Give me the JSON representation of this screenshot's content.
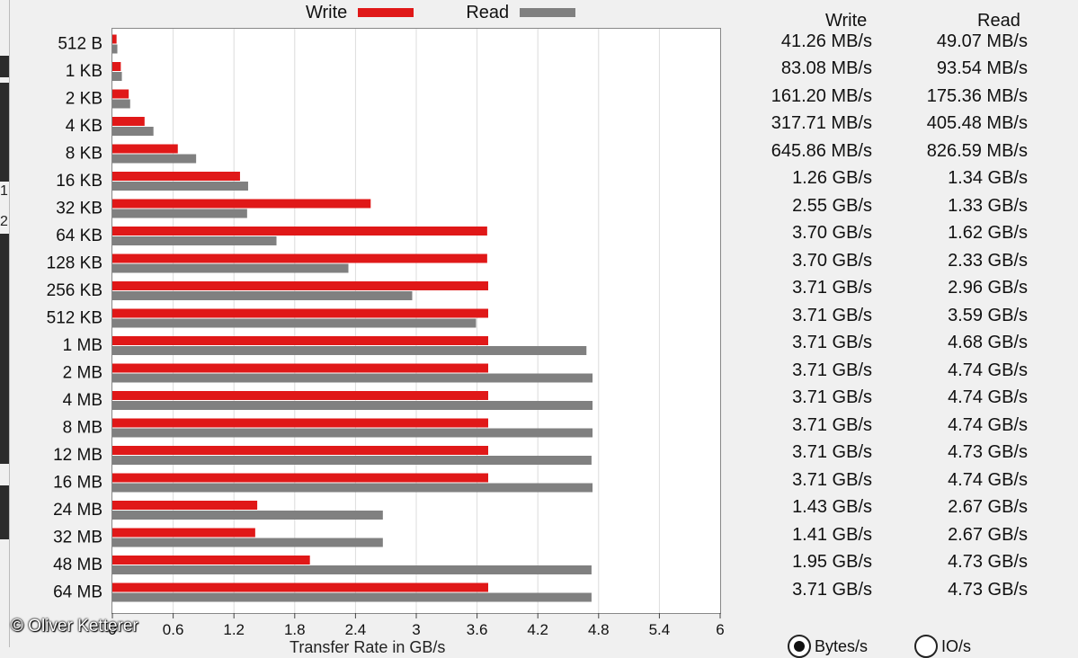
{
  "chart_data": {
    "type": "bar",
    "orientation": "horizontal",
    "categories": [
      "512 B",
      "1 KB",
      "2 KB",
      "4 KB",
      "8 KB",
      "16 KB",
      "32 KB",
      "64 KB",
      "128 KB",
      "256 KB",
      "512 KB",
      "1 MB",
      "2 MB",
      "4 MB",
      "8 MB",
      "12 MB",
      "16 MB",
      "24 MB",
      "32 MB",
      "48 MB",
      "64 MB"
    ],
    "series": [
      {
        "name": "Write",
        "color": "#e01818",
        "values": [
          0.04126,
          0.08308,
          0.1612,
          0.31771,
          0.64586,
          1.26,
          2.55,
          3.7,
          3.7,
          3.71,
          3.71,
          3.71,
          3.71,
          3.71,
          3.71,
          3.71,
          3.71,
          1.43,
          1.41,
          1.95,
          3.71
        ]
      },
      {
        "name": "Read",
        "color": "#808080",
        "values": [
          0.04907,
          0.09354,
          0.17536,
          0.40548,
          0.82659,
          1.34,
          1.33,
          1.62,
          2.33,
          2.96,
          3.59,
          4.68,
          4.74,
          4.74,
          4.74,
          4.73,
          4.74,
          2.67,
          2.67,
          4.73,
          4.73
        ]
      }
    ],
    "xlim": [
      0,
      6
    ],
    "xticks": [
      "0",
      "0.6",
      "1.2",
      "1.8",
      "2.4",
      "3",
      "3.6",
      "4.2",
      "4.8",
      "5.4",
      "6"
    ],
    "xlabel": "Transfer Rate in GB/s",
    "grid": "vertical",
    "legend_position": "top"
  },
  "legend": {
    "write": "Write",
    "read": "Read"
  },
  "table": {
    "header_write": "Write",
    "header_read": "Read",
    "write": [
      "41.26 MB/s",
      "83.08 MB/s",
      "161.20 MB/s",
      "317.71 MB/s",
      "645.86 MB/s",
      "1.26 GB/s",
      "2.55 GB/s",
      "3.70 GB/s",
      "3.70 GB/s",
      "3.71 GB/s",
      "3.71 GB/s",
      "3.71 GB/s",
      "3.71 GB/s",
      "3.71 GB/s",
      "3.71 GB/s",
      "3.71 GB/s",
      "3.71 GB/s",
      "1.43 GB/s",
      "1.41 GB/s",
      "1.95 GB/s",
      "3.71 GB/s"
    ],
    "read": [
      "49.07 MB/s",
      "93.54 MB/s",
      "175.36 MB/s",
      "405.48 MB/s",
      "826.59 MB/s",
      "1.34 GB/s",
      "1.33 GB/s",
      "1.62 GB/s",
      "2.33 GB/s",
      "2.96 GB/s",
      "3.59 GB/s",
      "4.68 GB/s",
      "4.74 GB/s",
      "4.74 GB/s",
      "4.74 GB/s",
      "4.73 GB/s",
      "4.74 GB/s",
      "2.67 GB/s",
      "2.67 GB/s",
      "4.73 GB/s",
      "4.73 GB/s"
    ]
  },
  "watermark": "© Oliver Ketterer",
  "radio": {
    "bytes_label": "Bytes/s",
    "io_label": "IO/s",
    "selected": "bytes"
  },
  "strip_numbers": [
    "1",
    "2"
  ]
}
